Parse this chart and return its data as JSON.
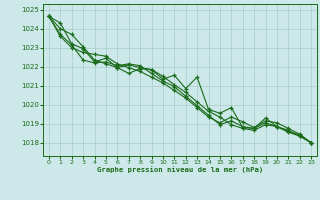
{
  "background_color": "#cce8e8",
  "grid_color": "#aacccc",
  "line_color": "#1a6b1a",
  "title": "Graphe pression niveau de la mer (hPa)",
  "xlim": [
    -0.5,
    23.5
  ],
  "ylim": [
    1017.3,
    1025.3
  ],
  "yticks": [
    1018,
    1019,
    1020,
    1021,
    1022,
    1023,
    1024,
    1025
  ],
  "xticks": [
    0,
    1,
    2,
    3,
    4,
    5,
    6,
    7,
    8,
    9,
    10,
    11,
    12,
    13,
    14,
    15,
    16,
    17,
    18,
    19,
    20,
    21,
    22,
    23
  ],
  "series": [
    [
      1024.65,
      1024.0,
      1023.7,
      1023.05,
      1022.35,
      1022.15,
      1021.95,
      1022.1,
      1021.95,
      1021.85,
      1021.5,
      1021.05,
      1020.65,
      1020.15,
      1019.65,
      1019.35,
      1018.95,
      1018.75,
      1018.65,
      1018.95,
      1018.85,
      1018.55,
      1018.35,
      1018.0
    ],
    [
      1024.65,
      1023.7,
      1023.15,
      1022.35,
      1022.2,
      1022.25,
      1022.05,
      1022.15,
      1022.05,
      1021.65,
      1021.25,
      1020.95,
      1020.45,
      1019.95,
      1019.45,
      1018.95,
      1019.15,
      1018.85,
      1018.75,
      1019.05,
      1018.85,
      1018.65,
      1018.35,
      1018.0
    ],
    [
      1024.65,
      1023.6,
      1023.0,
      1022.75,
      1022.65,
      1022.55,
      1022.15,
      1021.95,
      1021.75,
      1021.45,
      1021.15,
      1020.75,
      1020.35,
      1019.85,
      1019.35,
      1019.05,
      1019.35,
      1019.1,
      1018.8,
      1019.15,
      1019.05,
      1018.75,
      1018.45,
      1018.0
    ],
    [
      1024.65,
      1024.3,
      1023.2,
      1022.95,
      1022.25,
      1022.45,
      1021.95,
      1021.65,
      1021.9,
      1021.85,
      1021.35,
      1021.55,
      1020.85,
      1021.45,
      1019.75,
      1019.55,
      1019.85,
      1018.8,
      1018.75,
      1019.3,
      1018.85,
      1018.6,
      1018.4,
      1018.0
    ]
  ]
}
